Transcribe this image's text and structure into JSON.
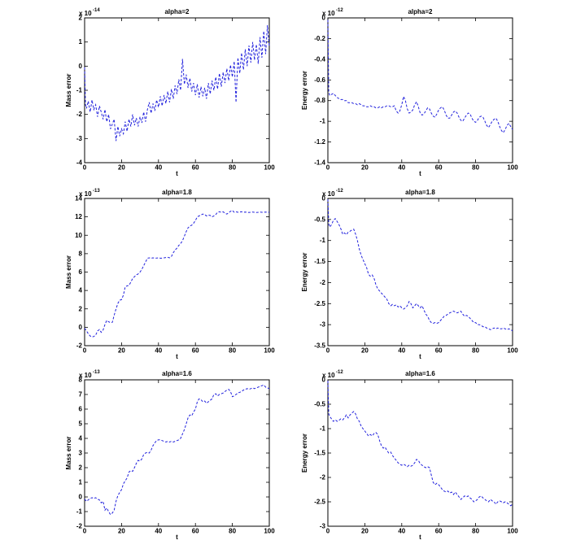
{
  "page": {
    "background": "#ffffff"
  },
  "chart_data": [
    {
      "name": "mass-error-alpha2",
      "type": "line",
      "title": "alpha=2",
      "xlabel": "t",
      "ylabel": "Mass error",
      "exponent_prefix": "x 10",
      "exponent_power": "-14",
      "xlim": [
        0,
        100
      ],
      "ylim": [
        -4,
        2
      ],
      "xticks": [
        0,
        20,
        40,
        60,
        80,
        100
      ],
      "yticks": [
        2,
        1,
        0,
        -1,
        -2,
        -3,
        -4
      ],
      "line_color": "#2222dd",
      "line_style": "dashed",
      "x": [
        0,
        0.5,
        1,
        2,
        3,
        4,
        5,
        6,
        7,
        8,
        9,
        10,
        11,
        12,
        13,
        14,
        15,
        16,
        17,
        18,
        19,
        20,
        21,
        22,
        23,
        24,
        25,
        26,
        27,
        28,
        29,
        30,
        31,
        32,
        33,
        34,
        35,
        36,
        37,
        38,
        39,
        40,
        41,
        42,
        43,
        44,
        45,
        46,
        47,
        48,
        49,
        50,
        51,
        52,
        53,
        54,
        55,
        56,
        57,
        58,
        59,
        60,
        61,
        62,
        63,
        64,
        65,
        66,
        67,
        68,
        69,
        70,
        71,
        72,
        73,
        74,
        75,
        76,
        77,
        78,
        79,
        80,
        81,
        82,
        83,
        84,
        85,
        86,
        87,
        88,
        89,
        90,
        91,
        92,
        93,
        94,
        95,
        96,
        97,
        98,
        99,
        100
      ],
      "y": [
        -0.05,
        -1.6,
        -1.75,
        -1.45,
        -1.9,
        -1.4,
        -1.8,
        -1.6,
        -2.1,
        -1.65,
        -1.9,
        -2.2,
        -1.8,
        -2.3,
        -2.0,
        -2.6,
        -2.4,
        -2.2,
        -3.1,
        -2.5,
        -2.9,
        -2.6,
        -2.8,
        -2.3,
        -2.7,
        -2.2,
        -2.5,
        -2.0,
        -2.45,
        -2.15,
        -2.5,
        -2.1,
        -2.35,
        -1.9,
        -2.3,
        -1.8,
        -1.5,
        -1.95,
        -1.55,
        -1.85,
        -1.4,
        -1.7,
        -1.25,
        -1.65,
        -1.2,
        -1.55,
        -1.05,
        -1.5,
        -0.95,
        -1.35,
        -0.8,
        -1.15,
        -0.55,
        -1.0,
        0.3,
        -0.75,
        -0.35,
        -0.9,
        -0.5,
        -1.05,
        -0.7,
        -1.2,
        -0.75,
        -1.3,
        -0.85,
        -1.25,
        -0.9,
        -1.35,
        -0.7,
        -1.15,
        -0.6,
        -1.0,
        -0.45,
        -0.95,
        -0.3,
        -0.85,
        -0.25,
        -0.7,
        -0.1,
        -0.6,
        0.05,
        -0.45,
        0.2,
        -1.5,
        0.35,
        -0.3,
        0.55,
        -0.15,
        0.7,
        0.0,
        0.85,
        0.15,
        1.0,
        0.25,
        0.9,
        0.1,
        1.2,
        0.35,
        1.45,
        0.5,
        1.7,
        0.8
      ]
    },
    {
      "name": "energy-error-alpha2",
      "type": "line",
      "title": "alpha=2",
      "xlabel": "t",
      "ylabel": "Energy error",
      "exponent_prefix": "x 10",
      "exponent_power": "-12",
      "xlim": [
        0,
        100
      ],
      "ylim": [
        -1.4,
        0
      ],
      "xticks": [
        0,
        20,
        40,
        60,
        80,
        100
      ],
      "yticks": [
        0,
        -0.2,
        -0.4,
        -0.6,
        -0.8,
        -1,
        -1.2,
        -1.4
      ],
      "line_color": "#2222dd",
      "line_style": "dashed",
      "x": [
        0,
        0.5,
        1,
        2,
        3,
        4,
        5,
        6,
        7,
        8,
        9,
        10,
        11,
        12,
        13,
        14,
        15,
        16,
        17,
        18,
        19,
        20,
        21,
        22,
        23,
        24,
        25,
        26,
        27,
        28,
        29,
        30,
        31,
        32,
        33,
        34,
        35,
        36,
        37,
        38,
        39,
        40,
        41,
        42,
        43,
        44,
        45,
        46,
        47,
        48,
        49,
        50,
        51,
        52,
        53,
        54,
        55,
        56,
        57,
        58,
        59,
        60,
        61,
        62,
        63,
        64,
        65,
        66,
        67,
        68,
        69,
        70,
        71,
        72,
        73,
        74,
        75,
        76,
        77,
        78,
        79,
        80,
        81,
        82,
        83,
        84,
        85,
        86,
        87,
        88,
        89,
        90,
        91,
        92,
        93,
        94,
        95,
        96,
        97,
        98,
        99,
        100
      ],
      "y": [
        -0.02,
        -0.72,
        -0.75,
        -0.74,
        -0.73,
        -0.75,
        -0.77,
        -0.78,
        -0.79,
        -0.79,
        -0.8,
        -0.8,
        -0.82,
        -0.82,
        -0.82,
        -0.83,
        -0.83,
        -0.84,
        -0.83,
        -0.84,
        -0.85,
        -0.85,
        -0.86,
        -0.86,
        -0.85,
        -0.86,
        -0.86,
        -0.87,
        -0.87,
        -0.86,
        -0.87,
        -0.86,
        -0.86,
        -0.85,
        -0.85,
        -0.86,
        -0.86,
        -0.85,
        -0.9,
        -0.92,
        -0.9,
        -0.84,
        -0.76,
        -0.8,
        -0.88,
        -0.92,
        -0.91,
        -0.89,
        -0.84,
        -0.81,
        -0.86,
        -0.92,
        -0.94,
        -0.93,
        -0.9,
        -0.87,
        -0.88,
        -0.92,
        -0.95,
        -0.96,
        -0.93,
        -0.89,
        -0.87,
        -0.86,
        -0.89,
        -0.94,
        -0.97,
        -0.97,
        -0.94,
        -0.91,
        -0.9,
        -0.92,
        -0.96,
        -0.99,
        -1.0,
        -0.97,
        -0.94,
        -0.92,
        -0.93,
        -0.97,
        -1.0,
        -1.01,
        -0.99,
        -0.96,
        -0.95,
        -0.96,
        -1.0,
        -1.04,
        -1.06,
        -1.03,
        -1.0,
        -0.98,
        -0.97,
        -1.0,
        -1.05,
        -1.09,
        -1.11,
        -1.08,
        -1.04,
        -1.02,
        -1.05,
        -1.08
      ]
    },
    {
      "name": "mass-error-alpha18",
      "type": "line",
      "title": "alpha=1.8",
      "xlabel": "t",
      "ylabel": "Mass error",
      "exponent_prefix": "x 10",
      "exponent_power": "-13",
      "xlim": [
        0,
        100
      ],
      "ylim": [
        -2,
        14
      ],
      "xticks": [
        0,
        20,
        40,
        60,
        80,
        100
      ],
      "yticks": [
        14,
        12,
        10,
        8,
        6,
        4,
        2,
        0,
        -2
      ],
      "line_color": "#2222dd",
      "line_style": "dashed",
      "x": [
        0,
        1,
        2,
        3,
        4,
        5,
        6,
        7,
        8,
        9,
        10,
        11,
        12,
        13,
        14,
        15,
        16,
        17,
        18,
        19,
        20,
        21,
        22,
        23,
        24,
        25,
        26,
        27,
        28,
        29,
        30,
        31,
        32,
        33,
        34,
        35,
        36,
        37,
        38,
        39,
        40,
        41,
        42,
        43,
        44,
        45,
        46,
        47,
        48,
        49,
        50,
        51,
        52,
        53,
        54,
        55,
        56,
        57,
        58,
        59,
        60,
        61,
        62,
        63,
        64,
        65,
        66,
        67,
        68,
        69,
        70,
        71,
        72,
        73,
        74,
        75,
        76,
        77,
        78,
        79,
        80,
        81,
        82,
        83,
        84,
        85,
        86,
        87,
        88,
        89,
        90,
        91,
        92,
        93,
        94,
        95,
        96,
        97,
        98,
        99,
        100
      ],
      "y": [
        -0.1,
        -0.4,
        -0.7,
        -0.95,
        -1.05,
        -1.0,
        -0.85,
        -0.4,
        -0.25,
        -0.55,
        -0.3,
        0.3,
        0.75,
        0.6,
        0.5,
        0.55,
        1.3,
        2.0,
        2.6,
        2.95,
        3.0,
        3.5,
        4.4,
        4.5,
        4.55,
        4.9,
        5.3,
        5.5,
        5.7,
        5.8,
        6.0,
        6.3,
        6.7,
        7.1,
        7.5,
        7.55,
        7.5,
        7.55,
        7.5,
        7.52,
        7.55,
        7.5,
        7.52,
        7.55,
        7.58,
        7.6,
        7.55,
        7.7,
        8.1,
        8.4,
        8.6,
        8.9,
        9.1,
        9.4,
        9.9,
        10.4,
        10.8,
        11.0,
        11.1,
        11.3,
        11.6,
        12.0,
        12.1,
        12.2,
        12.3,
        12.25,
        12.1,
        12.2,
        12.15,
        12.0,
        12.1,
        12.25,
        12.5,
        12.55,
        12.5,
        12.55,
        12.4,
        12.3,
        12.45,
        12.6,
        12.7,
        12.5,
        12.55,
        12.5,
        12.52,
        12.55,
        12.5,
        12.52,
        12.5,
        12.48,
        12.5,
        12.52,
        12.5,
        12.48,
        12.5,
        12.52,
        12.5,
        12.5,
        12.52,
        12.5,
        12.5
      ]
    },
    {
      "name": "energy-error-alpha18",
      "type": "line",
      "title": "alpha=1.8",
      "xlabel": "t",
      "ylabel": "Energy error",
      "exponent_prefix": "x 10",
      "exponent_power": "-12",
      "xlim": [
        0,
        100
      ],
      "ylim": [
        -3.5,
        0
      ],
      "xticks": [
        0,
        20,
        40,
        60,
        80,
        100
      ],
      "yticks": [
        0,
        -0.5,
        -1,
        -1.5,
        -2,
        -2.5,
        -3,
        -3.5
      ],
      "line_color": "#2222dd",
      "line_style": "dashed",
      "x": [
        0,
        0.5,
        1,
        2,
        3,
        4,
        5,
        6,
        7,
        8,
        9,
        10,
        11,
        12,
        13,
        14,
        15,
        16,
        17,
        18,
        19,
        20,
        21,
        22,
        23,
        24,
        25,
        26,
        27,
        28,
        29,
        30,
        31,
        32,
        33,
        34,
        35,
        36,
        37,
        38,
        39,
        40,
        41,
        42,
        43,
        44,
        45,
        46,
        47,
        48,
        49,
        50,
        51,
        52,
        53,
        54,
        55,
        56,
        57,
        58,
        59,
        60,
        61,
        62,
        63,
        64,
        65,
        66,
        67,
        68,
        69,
        70,
        71,
        72,
        73,
        74,
        75,
        76,
        77,
        78,
        79,
        80,
        81,
        82,
        83,
        84,
        85,
        86,
        87,
        88,
        89,
        90,
        91,
        92,
        93,
        94,
        95,
        96,
        97,
        98,
        99,
        100
      ],
      "y": [
        -0.02,
        -0.6,
        -0.68,
        -0.62,
        -0.52,
        -0.48,
        -0.55,
        -0.62,
        -0.72,
        -0.85,
        -0.82,
        -0.86,
        -0.8,
        -0.78,
        -0.75,
        -0.73,
        -0.85,
        -1.0,
        -1.2,
        -1.35,
        -1.45,
        -1.55,
        -1.65,
        -1.8,
        -1.85,
        -1.82,
        -1.9,
        -2.05,
        -2.15,
        -2.2,
        -2.25,
        -2.3,
        -2.35,
        -2.4,
        -2.5,
        -2.55,
        -2.52,
        -2.55,
        -2.53,
        -2.58,
        -2.55,
        -2.6,
        -2.63,
        -2.6,
        -2.55,
        -2.45,
        -2.5,
        -2.6,
        -2.55,
        -2.5,
        -2.55,
        -2.6,
        -2.55,
        -2.65,
        -2.75,
        -2.8,
        -2.9,
        -2.95,
        -2.97,
        -2.95,
        -2.97,
        -2.95,
        -2.9,
        -2.85,
        -2.8,
        -2.78,
        -2.75,
        -2.72,
        -2.7,
        -2.68,
        -2.7,
        -2.72,
        -2.7,
        -2.68,
        -2.75,
        -2.8,
        -2.78,
        -2.8,
        -2.85,
        -2.9,
        -2.95,
        -2.95,
        -3.0,
        -3.0,
        -3.02,
        -3.05,
        -3.05,
        -3.08,
        -3.1,
        -3.12,
        -3.1,
        -3.08,
        -3.1,
        -3.08,
        -3.1,
        -3.1,
        -3.08,
        -3.1,
        -3.12,
        -3.1,
        -3.12,
        -3.15
      ]
    },
    {
      "name": "mass-error-alpha16",
      "type": "line",
      "title": "alpha=1.6",
      "xlabel": "t",
      "ylabel": "Mass error",
      "exponent_prefix": "x 10",
      "exponent_power": "-13",
      "xlim": [
        0,
        100
      ],
      "ylim": [
        -2,
        8
      ],
      "xticks": [
        0,
        20,
        40,
        60,
        80,
        100
      ],
      "yticks": [
        8,
        7,
        6,
        5,
        4,
        3,
        2,
        1,
        0,
        -1,
        -2
      ],
      "line_color": "#2222dd",
      "line_style": "dashed",
      "x": [
        0,
        1,
        2,
        3,
        4,
        5,
        6,
        7,
        8,
        9,
        10,
        11,
        12,
        13,
        14,
        15,
        16,
        17,
        18,
        19,
        20,
        21,
        22,
        23,
        24,
        25,
        26,
        27,
        28,
        29,
        30,
        31,
        32,
        33,
        34,
        35,
        36,
        37,
        38,
        39,
        40,
        41,
        42,
        43,
        44,
        45,
        46,
        47,
        48,
        49,
        50,
        51,
        52,
        53,
        54,
        55,
        56,
        57,
        58,
        59,
        60,
        61,
        62,
        63,
        64,
        65,
        66,
        67,
        68,
        69,
        70,
        71,
        72,
        73,
        74,
        75,
        76,
        77,
        78,
        79,
        80,
        81,
        82,
        83,
        84,
        85,
        86,
        87,
        88,
        89,
        90,
        91,
        92,
        93,
        94,
        95,
        96,
        97,
        98,
        99,
        100
      ],
      "y": [
        -0.15,
        -0.3,
        -0.2,
        -0.1,
        -0.05,
        -0.1,
        -0.05,
        -0.15,
        -0.2,
        -0.4,
        -0.3,
        -0.9,
        -0.75,
        -1.0,
        -1.2,
        -1.1,
        -0.9,
        -0.3,
        0.1,
        0.3,
        0.5,
        0.9,
        1.1,
        1.3,
        1.7,
        1.8,
        1.75,
        2.0,
        2.3,
        2.5,
        2.45,
        2.6,
        2.9,
        3.0,
        3.05,
        3.0,
        3.2,
        3.5,
        3.7,
        3.85,
        3.9,
        3.9,
        3.85,
        3.8,
        3.75,
        3.8,
        3.75,
        3.8,
        3.75,
        3.8,
        3.85,
        3.9,
        4.0,
        4.3,
        4.6,
        5.0,
        5.4,
        5.6,
        5.55,
        5.8,
        6.0,
        6.5,
        6.7,
        6.65,
        6.5,
        6.55,
        6.4,
        6.5,
        6.6,
        6.7,
        7.0,
        7.05,
        6.9,
        7.0,
        7.05,
        7.1,
        7.2,
        7.3,
        7.35,
        7.2,
        6.85,
        6.9,
        7.0,
        7.1,
        7.15,
        7.2,
        7.3,
        7.35,
        7.4,
        7.35,
        7.4,
        7.45,
        7.4,
        7.45,
        7.5,
        7.55,
        7.6,
        7.65,
        7.5,
        7.45,
        7.4
      ]
    },
    {
      "name": "energy-error-alpha16",
      "type": "line",
      "title": "alpha=1.6",
      "xlabel": "t",
      "ylabel": "Energy error",
      "exponent_prefix": "x 10",
      "exponent_power": "-12",
      "xlim": [
        0,
        100
      ],
      "ylim": [
        -3,
        0
      ],
      "xticks": [
        0,
        20,
        40,
        60,
        80,
        100
      ],
      "yticks": [
        0,
        -0.5,
        -1,
        -1.5,
        -2,
        -2.5,
        -3
      ],
      "line_color": "#2222dd",
      "line_style": "dashed",
      "x": [
        0,
        0.5,
        1,
        2,
        3,
        4,
        5,
        6,
        7,
        8,
        9,
        10,
        11,
        12,
        13,
        14,
        15,
        16,
        17,
        18,
        19,
        20,
        21,
        22,
        23,
        24,
        25,
        26,
        27,
        28,
        29,
        30,
        31,
        32,
        33,
        34,
        35,
        36,
        37,
        38,
        39,
        40,
        41,
        42,
        43,
        44,
        45,
        46,
        47,
        48,
        49,
        50,
        51,
        52,
        53,
        54,
        55,
        56,
        57,
        58,
        59,
        60,
        61,
        62,
        63,
        64,
        65,
        66,
        67,
        68,
        69,
        70,
        71,
        72,
        73,
        74,
        75,
        76,
        77,
        78,
        79,
        80,
        81,
        82,
        83,
        84,
        85,
        86,
        87,
        88,
        89,
        90,
        91,
        92,
        93,
        94,
        95,
        96,
        97,
        98,
        99,
        100
      ],
      "y": [
        -0.02,
        -0.7,
        -0.75,
        -0.8,
        -0.85,
        -0.82,
        -0.85,
        -0.83,
        -0.8,
        -0.82,
        -0.78,
        -0.72,
        -0.78,
        -0.72,
        -0.68,
        -0.65,
        -0.7,
        -0.8,
        -0.85,
        -0.95,
        -1.0,
        -1.05,
        -1.1,
        -1.15,
        -1.12,
        -1.15,
        -1.1,
        -1.08,
        -1.12,
        -1.25,
        -1.35,
        -1.4,
        -1.38,
        -1.45,
        -1.5,
        -1.48,
        -1.55,
        -1.6,
        -1.65,
        -1.7,
        -1.73,
        -1.75,
        -1.73,
        -1.75,
        -1.78,
        -1.75,
        -1.77,
        -1.75,
        -1.7,
        -1.63,
        -1.65,
        -1.72,
        -1.75,
        -1.78,
        -1.8,
        -1.78,
        -1.8,
        -1.95,
        -2.1,
        -2.15,
        -2.12,
        -2.15,
        -2.2,
        -2.25,
        -2.28,
        -2.3,
        -2.28,
        -2.32,
        -2.3,
        -2.35,
        -2.3,
        -2.35,
        -2.4,
        -2.45,
        -2.42,
        -2.38,
        -2.4,
        -2.38,
        -2.42,
        -2.45,
        -2.5,
        -2.48,
        -2.45,
        -2.4,
        -2.38,
        -2.42,
        -2.45,
        -2.48,
        -2.5,
        -2.45,
        -2.48,
        -2.5,
        -2.55,
        -2.5,
        -2.48,
        -2.5,
        -2.52,
        -2.5,
        -2.52,
        -2.55,
        -2.58,
        -2.55
      ]
    }
  ]
}
